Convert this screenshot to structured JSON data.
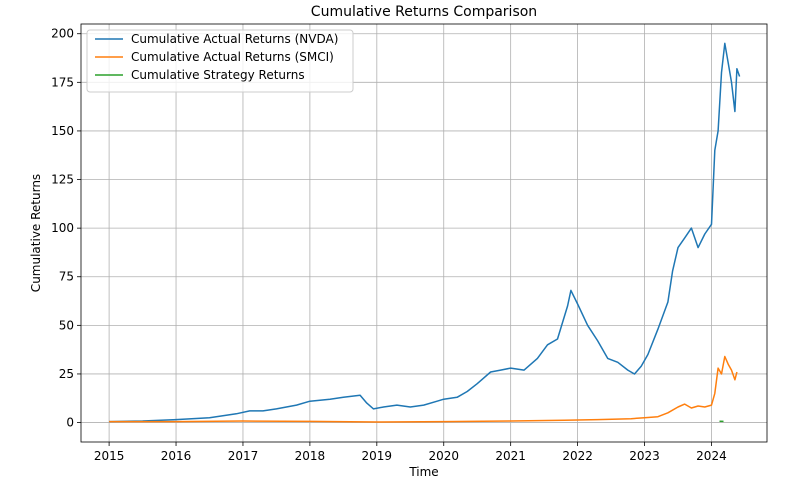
{
  "chart_data": {
    "type": "line",
    "title": "Cumulative Returns Comparison",
    "xlabel": "Time",
    "ylabel": "Cumulative Returns",
    "xlim": [
      2014.58,
      2024.83
    ],
    "ylim": [
      -10,
      205
    ],
    "x_ticks": [
      2015,
      2016,
      2017,
      2018,
      2019,
      2020,
      2021,
      2022,
      2023,
      2024
    ],
    "x_tick_labels": [
      "2015",
      "2016",
      "2017",
      "2018",
      "2019",
      "2020",
      "2021",
      "2022",
      "2023",
      "2024"
    ],
    "y_ticks": [
      0,
      25,
      50,
      75,
      100,
      125,
      150,
      175,
      200
    ],
    "y_tick_labels": [
      "0",
      "25",
      "50",
      "75",
      "100",
      "125",
      "150",
      "175",
      "200"
    ],
    "grid": true,
    "legend_position": "upper-left",
    "series": [
      {
        "name": "Cumulative Actual Returns (NVDA)",
        "color": "#1f77b4",
        "x": [
          2015.0,
          2015.5,
          2016.0,
          2016.5,
          2016.9,
          2017.1,
          2017.3,
          2017.5,
          2017.8,
          2018.0,
          2018.3,
          2018.5,
          2018.75,
          2018.85,
          2018.95,
          2019.1,
          2019.3,
          2019.5,
          2019.7,
          2019.9,
          2020.0,
          2020.2,
          2020.35,
          2020.5,
          2020.7,
          2020.85,
          2021.0,
          2021.2,
          2021.4,
          2021.55,
          2021.7,
          2021.85,
          2021.9,
          2022.0,
          2022.15,
          2022.3,
          2022.45,
          2022.6,
          2022.75,
          2022.85,
          2022.95,
          2023.05,
          2023.2,
          2023.35,
          2023.42,
          2023.5,
          2023.6,
          2023.7,
          2023.8,
          2023.9,
          2024.0,
          2024.05,
          2024.1,
          2024.15,
          2024.2,
          2024.25,
          2024.3,
          2024.35,
          2024.38,
          2024.42
        ],
        "values": [
          0.5,
          0.8,
          1.5,
          2.5,
          4.5,
          6,
          6,
          7,
          9,
          11,
          12,
          13,
          14,
          10,
          7,
          8,
          9,
          8,
          9,
          11,
          12,
          13,
          16,
          20,
          26,
          27,
          28,
          27,
          33,
          40,
          43,
          60,
          68,
          61,
          50,
          42,
          33,
          31,
          27,
          25,
          29,
          35,
          48,
          62,
          78,
          90,
          95,
          100,
          90,
          97,
          102,
          140,
          150,
          180,
          195,
          185,
          175,
          160,
          182,
          178
        ]
      },
      {
        "name": "Cumulative Actual Returns (SMCI)",
        "color": "#ff7f0e",
        "x": [
          2015.0,
          2016.0,
          2017.0,
          2018.0,
          2019.0,
          2020.0,
          2021.0,
          2021.8,
          2022.3,
          2022.8,
          2023.0,
          2023.2,
          2023.35,
          2023.5,
          2023.6,
          2023.7,
          2023.8,
          2023.9,
          2024.0,
          2024.05,
          2024.1,
          2024.15,
          2024.2,
          2024.25,
          2024.3,
          2024.35,
          2024.38
        ],
        "values": [
          0.5,
          0.5,
          0.8,
          0.6,
          0.3,
          0.5,
          0.8,
          1.2,
          1.5,
          2.0,
          2.5,
          3.0,
          5.0,
          8.0,
          9.5,
          7.5,
          8.5,
          8.0,
          9.0,
          15,
          28,
          25,
          34,
          30,
          27,
          22,
          26
        ]
      },
      {
        "name": "Cumulative Strategy Returns",
        "color": "#2ca02c",
        "x": [
          2024.12,
          2024.18
        ],
        "values": [
          0.7,
          0.6
        ]
      }
    ]
  }
}
